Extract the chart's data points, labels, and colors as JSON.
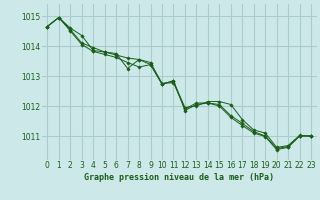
{
  "title": "Graphe pression niveau de la mer (hPa)",
  "background_color": "#cce8e8",
  "grid_color": "#aacccc",
  "line_color": "#1a5e1a",
  "x_ticks": [
    0,
    1,
    2,
    3,
    4,
    5,
    6,
    7,
    8,
    9,
    10,
    11,
    12,
    13,
    14,
    15,
    16,
    17,
    18,
    19,
    20,
    21,
    22,
    23
  ],
  "y_ticks": [
    1011,
    1012,
    1013,
    1014,
    1015
  ],
  "ylim": [
    1010.2,
    1015.4
  ],
  "xlim": [
    -0.5,
    23.5
  ],
  "series": [
    [
      1014.65,
      1014.95,
      1014.6,
      1014.35,
      1013.85,
      1013.8,
      1013.75,
      1013.25,
      1013.55,
      1013.45,
      1012.75,
      1012.82,
      1011.95,
      1012.0,
      1012.15,
      1012.15,
      1012.05,
      1011.55,
      1011.2,
      1011.1,
      1010.62,
      1010.68,
      1011.02,
      1011.0
    ],
    [
      1014.65,
      1014.95,
      1014.55,
      1014.1,
      1013.95,
      1013.8,
      1013.7,
      1013.6,
      1013.55,
      1013.38,
      1012.75,
      1012.78,
      1011.9,
      1012.1,
      1012.1,
      1012.05,
      1011.68,
      1011.42,
      1011.15,
      1011.0,
      1010.58,
      1010.65,
      1011.0,
      1011.0
    ],
    [
      1014.65,
      1014.95,
      1014.5,
      1014.05,
      1013.82,
      1013.72,
      1013.62,
      1013.45,
      1013.3,
      1013.38,
      1012.72,
      1012.85,
      1011.85,
      1012.05,
      1012.1,
      1012.0,
      1011.62,
      1011.35,
      1011.1,
      1010.98,
      1010.55,
      1010.62,
      1011.0,
      1011.0
    ]
  ]
}
